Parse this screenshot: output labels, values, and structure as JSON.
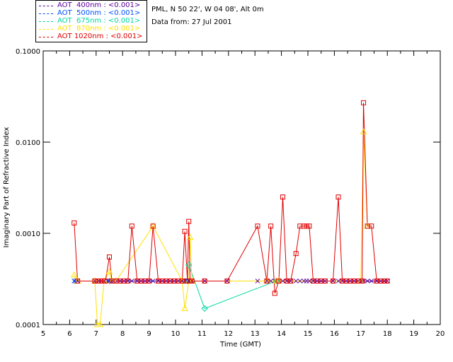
{
  "header": {
    "site": "PML, N 50 22', W 04 08', Alt 0m",
    "date": "Data from: 27 Jul 2001"
  },
  "chart_data": {
    "type": "line",
    "title": "",
    "xlabel": "Time (GMT)",
    "ylabel": "Imaginary Part of Refractive Index",
    "xlim": [
      5,
      20
    ],
    "ylim": [
      0.0001,
      0.1
    ],
    "yscale": "log",
    "xticks": [
      "5",
      "6",
      "7",
      "8",
      "9",
      "10",
      "11",
      "12",
      "13",
      "14",
      "15",
      "16",
      "17",
      "18",
      "19",
      "20"
    ],
    "yticks": [
      "0.0001",
      "0.0010",
      "0.0100",
      "0.1000"
    ],
    "series": [
      {
        "name": "AOT  400nm : <0.001>",
        "color": "#5a009a",
        "marker": "x",
        "x": [
          6.17,
          6.3,
          6.95,
          7.1,
          7.2,
          7.3,
          7.45,
          7.55,
          7.65,
          7.8,
          7.9,
          8.05,
          8.2,
          8.35,
          8.55,
          8.7,
          8.85,
          9.0,
          9.15,
          9.35,
          9.5,
          9.65,
          9.8,
          9.95,
          10.1,
          10.25,
          10.35,
          10.45,
          10.5,
          10.55,
          10.62,
          11.1,
          11.95,
          13.1,
          13.45,
          13.6,
          13.75,
          13.9,
          14.05,
          14.2,
          14.35,
          14.55,
          14.7,
          14.85,
          14.95,
          15.05,
          15.2,
          15.35,
          15.5,
          15.65,
          15.95,
          16.15,
          16.3,
          16.45,
          16.6,
          16.75,
          16.9,
          17.05,
          17.1,
          17.25,
          17.4,
          17.6,
          17.75,
          17.9,
          18.0
        ],
        "y": [
          0.0003,
          0.0003,
          0.0003,
          0.0003,
          0.0003,
          0.0003,
          0.0003,
          0.0003,
          0.0003,
          0.0003,
          0.0003,
          0.0003,
          0.0003,
          0.0003,
          0.0003,
          0.0003,
          0.0003,
          0.0003,
          0.0003,
          0.0003,
          0.0003,
          0.0003,
          0.0003,
          0.0003,
          0.0003,
          0.0003,
          0.0003,
          0.0003,
          0.0003,
          0.0003,
          0.0003,
          0.0003,
          0.0003,
          0.0003,
          0.0003,
          0.0003,
          0.0003,
          0.0003,
          0.0003,
          0.0003,
          0.0003,
          0.0003,
          0.0003,
          0.0003,
          0.0003,
          0.0003,
          0.0003,
          0.0003,
          0.0003,
          0.0003,
          0.0003,
          0.0003,
          0.0003,
          0.0003,
          0.0003,
          0.0003,
          0.0003,
          0.0003,
          0.0003,
          0.0003,
          0.0003,
          0.0003,
          0.0003,
          0.0003,
          0.0003
        ]
      },
      {
        "name": "AOT  500nm : <0.001>",
        "color": "#0050ff",
        "marker": "asterisk",
        "x": [
          6.17,
          7.5,
          10.35,
          10.45
        ],
        "y": [
          0.0003,
          0.0003,
          0.0003,
          0.0003
        ]
      },
      {
        "name": "AOT  675nm : <0.001>",
        "color": "#00d8a0",
        "marker": "diamond",
        "x": [
          10.5,
          11.1,
          13.8
        ],
        "y": [
          0.00045,
          0.00015,
          0.0003
        ]
      },
      {
        "name": "AOT  870nm : <0.001>",
        "color": "#ffe000",
        "marker": "triangle",
        "x": [
          6.17,
          6.3,
          6.95,
          7.05,
          7.15,
          7.3,
          7.5,
          7.6,
          7.75,
          9.15,
          10.25,
          10.35,
          10.5,
          10.55,
          10.62,
          13.45,
          13.8,
          13.9,
          17.0,
          17.1,
          17.25
        ],
        "y": [
          0.00035,
          0.0003,
          0.0003,
          0.0001,
          0.0001,
          0.0003,
          0.00038,
          0.0003,
          0.0003,
          0.0012,
          0.0003,
          0.00015,
          0.0003,
          0.0009,
          0.0003,
          0.0003,
          0.0003,
          0.0003,
          0.0003,
          0.013,
          0.0012
        ]
      },
      {
        "name": "AOT 1020nm : <0.001>",
        "color": "#e00000",
        "marker": "square",
        "x": [
          6.17,
          6.3,
          6.95,
          7.05,
          7.15,
          7.25,
          7.35,
          7.5,
          7.6,
          7.75,
          7.9,
          8.05,
          8.2,
          8.35,
          8.55,
          8.7,
          8.85,
          9.0,
          9.15,
          9.35,
          9.5,
          9.65,
          9.8,
          9.95,
          10.1,
          10.25,
          10.35,
          10.45,
          10.5,
          10.55,
          10.62,
          11.1,
          11.95,
          13.1,
          13.45,
          13.6,
          13.75,
          13.9,
          14.05,
          14.2,
          14.35,
          14.55,
          14.7,
          14.85,
          14.95,
          15.05,
          15.2,
          15.35,
          15.5,
          15.65,
          15.95,
          16.15,
          16.3,
          16.45,
          16.6,
          16.75,
          16.9,
          17.05,
          17.1,
          17.25,
          17.4,
          17.6,
          17.75,
          17.9,
          18.0
        ],
        "y": [
          0.0013,
          0.0003,
          0.0003,
          0.0003,
          0.0003,
          0.0003,
          0.0003,
          0.00055,
          0.0003,
          0.0003,
          0.0003,
          0.0003,
          0.0003,
          0.0012,
          0.0003,
          0.0003,
          0.0003,
          0.0003,
          0.0012,
          0.0003,
          0.0003,
          0.0003,
          0.0003,
          0.0003,
          0.0003,
          0.0003,
          0.00105,
          0.0003,
          0.00135,
          0.0003,
          0.0003,
          0.0003,
          0.0003,
          0.0012,
          0.0003,
          0.0012,
          0.00022,
          0.0003,
          0.0025,
          0.0003,
          0.0003,
          0.0006,
          0.0012,
          0.0012,
          0.0012,
          0.0012,
          0.0003,
          0.0003,
          0.0003,
          0.0003,
          0.0003,
          0.0025,
          0.0003,
          0.0003,
          0.0003,
          0.0003,
          0.0003,
          0.0003,
          0.027,
          0.0012,
          0.0012,
          0.0003,
          0.0003,
          0.0003,
          0.0003
        ]
      }
    ],
    "legend": "top-left"
  }
}
